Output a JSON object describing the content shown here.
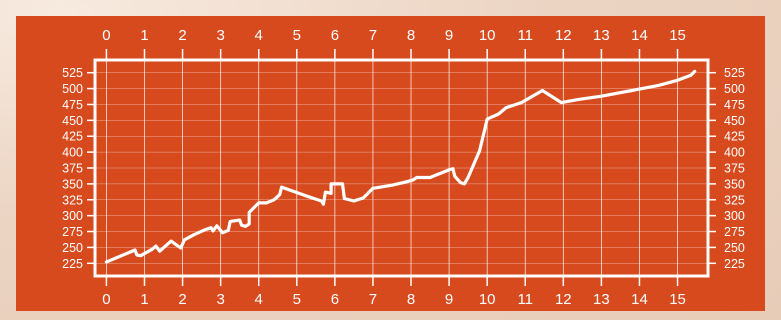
{
  "chart_data": {
    "type": "line",
    "title": "",
    "xlabel": "",
    "ylabel": "",
    "xlim": [
      -0.3,
      15.8
    ],
    "ylim": [
      205,
      545
    ],
    "x_ticks": [
      0,
      1,
      2,
      3,
      4,
      5,
      6,
      7,
      8,
      9,
      10,
      11,
      12,
      13,
      14,
      15
    ],
    "y_ticks": [
      225,
      250,
      275,
      300,
      325,
      350,
      375,
      400,
      425,
      450,
      475,
      500,
      525
    ],
    "grid": "vertical and horizontal white lines",
    "legend": "none",
    "colors": {
      "background": "#d64a1e",
      "line": "#ffffff",
      "frame": "#ffffff"
    },
    "series": [
      {
        "points": [
          [
            0.0,
            227
          ],
          [
            0.75,
            246
          ],
          [
            0.8,
            238
          ],
          [
            0.9,
            237
          ],
          [
            1.2,
            247
          ],
          [
            1.3,
            252
          ],
          [
            1.4,
            244
          ],
          [
            1.7,
            260
          ],
          [
            1.95,
            249
          ],
          [
            2.05,
            262
          ],
          [
            2.3,
            270
          ],
          [
            2.6,
            278
          ],
          [
            2.75,
            281
          ],
          [
            2.8,
            276
          ],
          [
            2.9,
            284
          ],
          [
            3.05,
            273
          ],
          [
            3.2,
            277
          ],
          [
            3.25,
            291
          ],
          [
            3.5,
            293
          ],
          [
            3.55,
            285
          ],
          [
            3.65,
            283
          ],
          [
            3.75,
            287
          ],
          [
            3.75,
            305
          ],
          [
            4.0,
            320
          ],
          [
            4.2,
            320
          ],
          [
            4.4,
            325
          ],
          [
            4.55,
            333
          ],
          [
            4.6,
            345
          ],
          [
            5.2,
            332
          ],
          [
            5.5,
            326
          ],
          [
            5.65,
            323
          ],
          [
            5.7,
            318
          ],
          [
            5.75,
            337
          ],
          [
            5.9,
            335
          ],
          [
            5.9,
            350
          ],
          [
            6.05,
            350
          ],
          [
            6.2,
            350
          ],
          [
            6.25,
            327
          ],
          [
            6.5,
            323
          ],
          [
            6.75,
            328
          ],
          [
            7.0,
            343
          ],
          [
            7.5,
            348
          ],
          [
            7.8,
            352
          ],
          [
            8.05,
            356
          ],
          [
            8.15,
            360
          ],
          [
            8.5,
            360
          ],
          [
            8.7,
            365
          ],
          [
            9.0,
            372
          ],
          [
            9.1,
            374
          ],
          [
            9.15,
            362
          ],
          [
            9.3,
            352
          ],
          [
            9.4,
            350
          ],
          [
            9.5,
            360
          ],
          [
            9.6,
            374
          ],
          [
            9.8,
            402
          ],
          [
            10.0,
            452
          ],
          [
            10.3,
            460
          ],
          [
            10.5,
            470
          ],
          [
            10.9,
            478
          ],
          [
            11.45,
            497
          ],
          [
            11.95,
            478
          ],
          [
            12.4,
            483
          ],
          [
            13.0,
            488
          ],
          [
            13.8,
            497
          ],
          [
            14.5,
            505
          ],
          [
            15.0,
            513
          ],
          [
            15.35,
            521
          ],
          [
            15.45,
            527
          ]
        ]
      }
    ]
  }
}
